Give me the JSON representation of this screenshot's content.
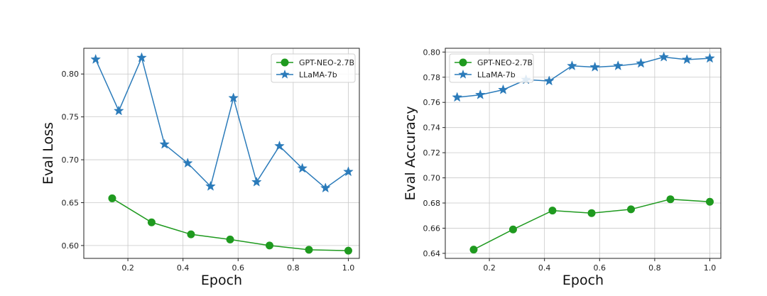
{
  "colors": {
    "gpt": "#1f9a1f",
    "llama": "#2b7bba"
  },
  "chart_data": [
    {
      "type": "line",
      "title": "",
      "xlabel": "Epoch",
      "ylabel": "Eval Loss",
      "xlim": [
        0.04,
        1.04
      ],
      "ylim": [
        0.585,
        0.83
      ],
      "xticks": [
        "0.2",
        "0.4",
        "0.6",
        "0.8",
        "1.0"
      ],
      "yticks": [
        "0.60",
        "0.65",
        "0.70",
        "0.75",
        "0.80"
      ],
      "grid": true,
      "legend": "top-right",
      "series": [
        {
          "name": "GPT-NEO-2.7B",
          "marker": "circle",
          "color": "#1f9a1f",
          "x": [
            0.143,
            0.286,
            0.429,
            0.571,
            0.714,
            0.857,
            1.0
          ],
          "y": [
            0.655,
            0.627,
            0.613,
            0.607,
            0.6,
            0.595,
            0.594
          ]
        },
        {
          "name": "LLaMA-7b",
          "marker": "star",
          "color": "#2b7bba",
          "x": [
            0.083,
            0.167,
            0.25,
            0.333,
            0.417,
            0.5,
            0.583,
            0.667,
            0.75,
            0.833,
            0.917,
            1.0
          ],
          "y": [
            0.817,
            0.757,
            0.819,
            0.718,
            0.696,
            0.669,
            0.772,
            0.674,
            0.716,
            0.69,
            0.667,
            0.686
          ]
        }
      ]
    },
    {
      "type": "line",
      "title": "",
      "xlabel": "Epoch",
      "ylabel": "Eval Accuracy",
      "xlim": [
        0.04,
        1.04
      ],
      "ylim": [
        0.636,
        0.803
      ],
      "xticks": [
        "0.2",
        "0.4",
        "0.6",
        "0.8",
        "1.0"
      ],
      "yticks": [
        "0.64",
        "0.66",
        "0.68",
        "0.70",
        "0.72",
        "0.74",
        "0.76",
        "0.78",
        "0.80"
      ],
      "grid": true,
      "legend": "top-left",
      "series": [
        {
          "name": "GPT-NEO-2.7B",
          "marker": "circle",
          "color": "#1f9a1f",
          "x": [
            0.143,
            0.286,
            0.429,
            0.571,
            0.714,
            0.857,
            1.0
          ],
          "y": [
            0.643,
            0.659,
            0.674,
            0.672,
            0.675,
            0.683,
            0.681
          ]
        },
        {
          "name": "LLaMA-7b",
          "marker": "star",
          "color": "#2b7bba",
          "x": [
            0.083,
            0.167,
            0.25,
            0.333,
            0.417,
            0.5,
            0.583,
            0.667,
            0.75,
            0.833,
            0.917,
            1.0
          ],
          "y": [
            0.764,
            0.766,
            0.77,
            0.778,
            0.777,
            0.789,
            0.788,
            0.789,
            0.791,
            0.796,
            0.794,
            0.795
          ]
        }
      ]
    }
  ]
}
